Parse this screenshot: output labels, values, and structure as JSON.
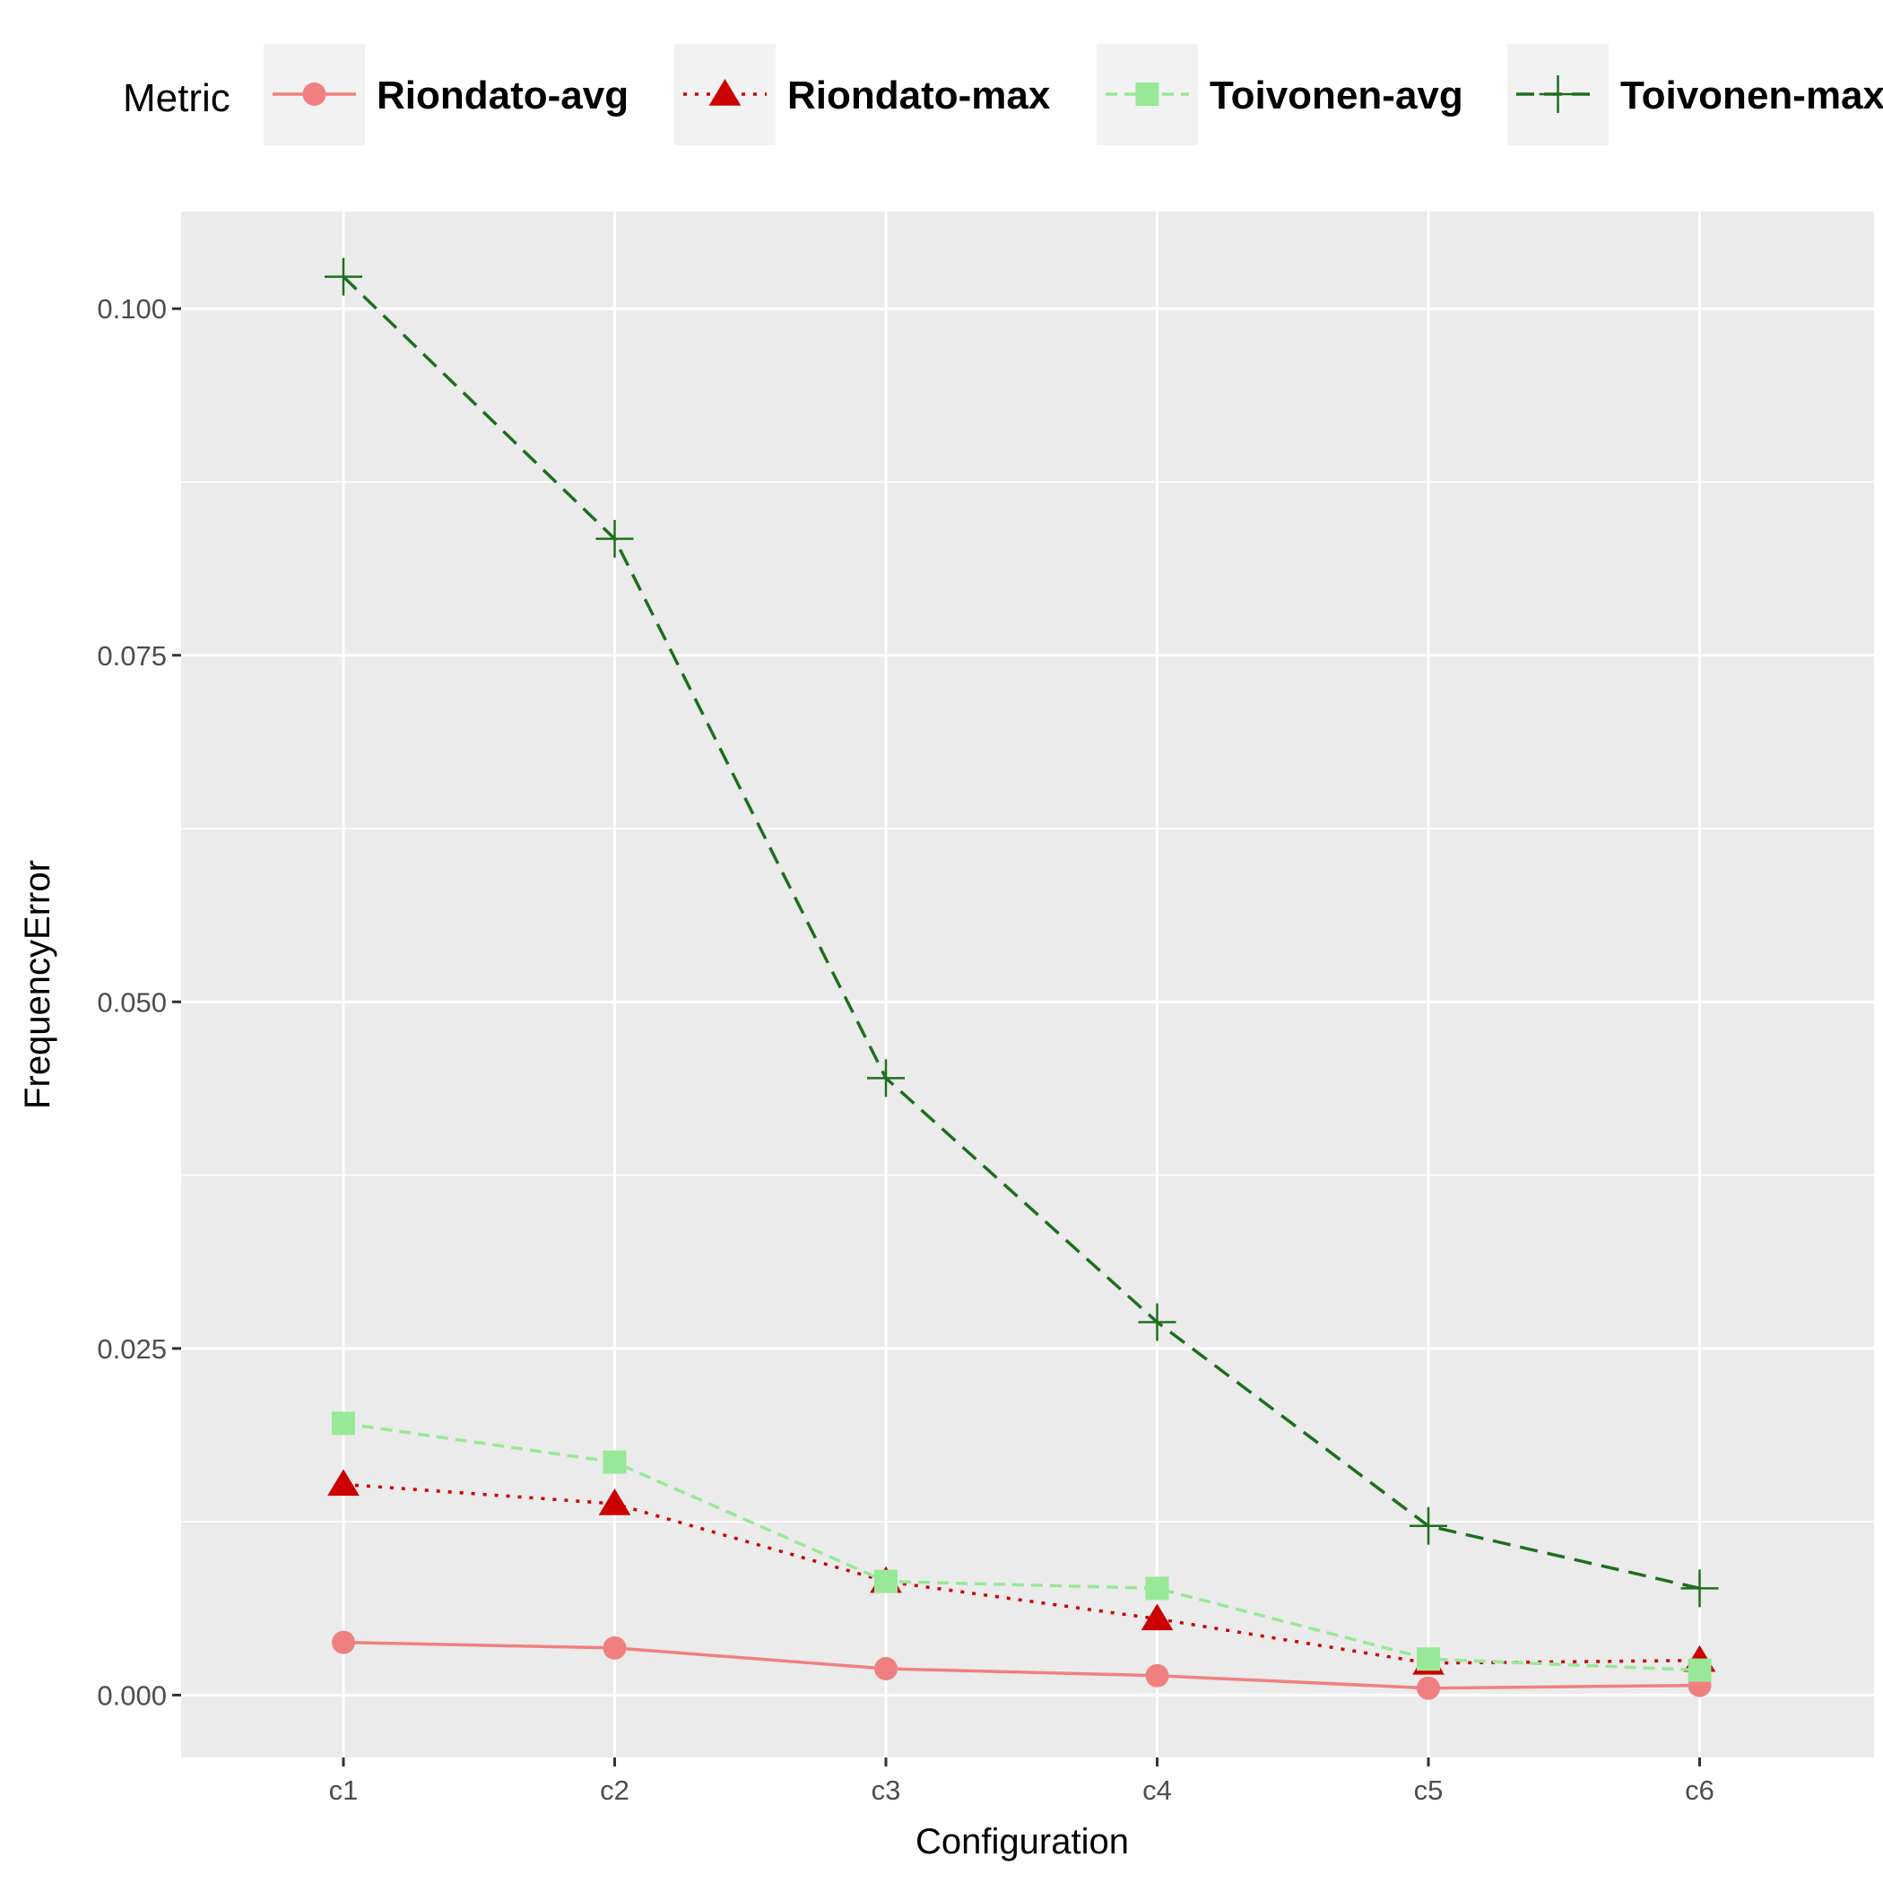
{
  "chart_data": {
    "type": "line",
    "xlabel": "Configuration",
    "ylabel": "FrequencyError",
    "categories": [
      "c1",
      "c2",
      "c3",
      "c4",
      "c5",
      "c6"
    ],
    "ylim": [
      -0.0045,
      0.107
    ],
    "yticks": [
      "0.000",
      "0.025",
      "0.050",
      "0.075",
      "0.100"
    ],
    "ytick_values": [
      0,
      0.025,
      0.05,
      0.075,
      0.1
    ],
    "grid": true,
    "legend": {
      "title": "Metric",
      "position": "top"
    },
    "series": [
      {
        "name": "Riondato-avg",
        "values": [
          0.0038,
          0.0034,
          0.0019,
          0.0014,
          0.0005,
          0.0007
        ],
        "color": "#f08080",
        "dash": "solid",
        "marker": "circle"
      },
      {
        "name": "Riondato-max",
        "values": [
          0.0152,
          0.0138,
          0.0082,
          0.0055,
          0.0023,
          0.0025
        ],
        "color": "#cc0000",
        "dash": "dotted",
        "marker": "triangle"
      },
      {
        "name": "Toivonen-avg",
        "values": [
          0.0196,
          0.0168,
          0.0082,
          0.0077,
          0.0026,
          0.0018
        ],
        "color": "#98e898",
        "dash": "dashed",
        "marker": "square"
      },
      {
        "name": "Toivonen-max",
        "values": [
          0.1023,
          0.0834,
          0.0445,
          0.0269,
          0.0122,
          0.0077
        ],
        "color": "#1e6e1e",
        "dash": "longdash",
        "marker": "plus"
      }
    ]
  }
}
